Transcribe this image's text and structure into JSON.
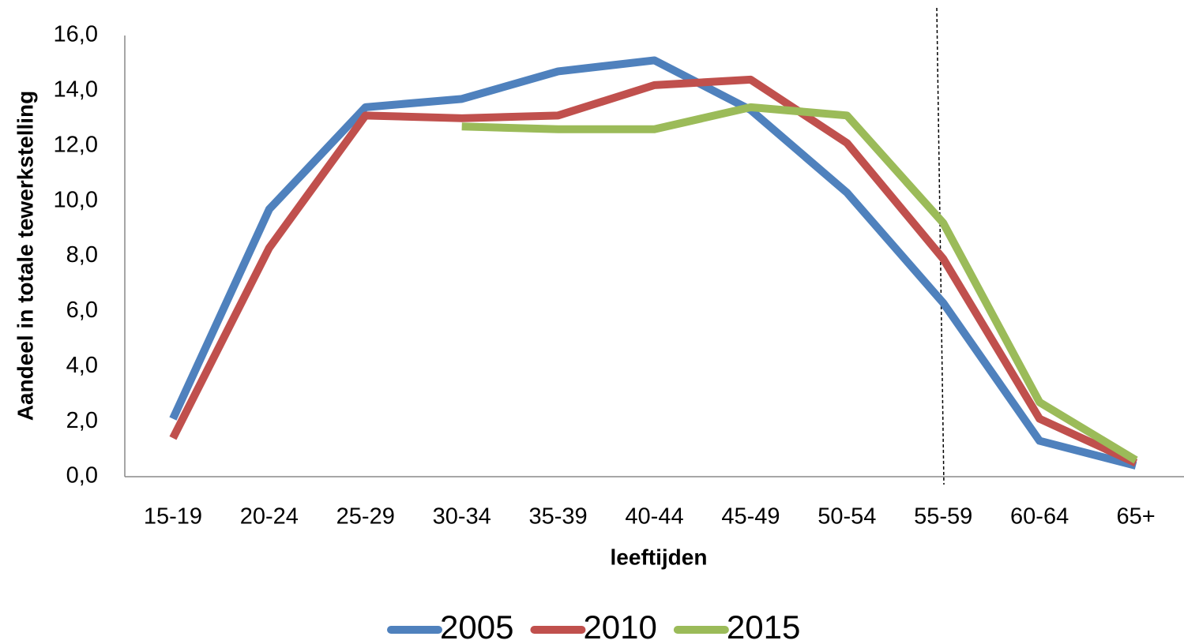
{
  "chart_data": {
    "type": "line",
    "x_label": "leeftijden",
    "y_label": "Aandeel in totale tewerkstelling",
    "categories": [
      "15-19",
      "20-24",
      "25-29",
      "30-34",
      "35-39",
      "40-44",
      "45-49",
      "50-54",
      "55-59",
      "60-64",
      "65+"
    ],
    "series": [
      {
        "name": "2005",
        "color": "#4f81bd",
        "values": [
          2.1,
          9.7,
          13.4,
          13.7,
          14.7,
          15.1,
          13.3,
          10.3,
          6.3,
          1.3,
          0.4
        ]
      },
      {
        "name": "2010",
        "color": "#c0504d",
        "values": [
          1.4,
          8.3,
          13.1,
          13.0,
          13.1,
          14.2,
          14.4,
          12.1,
          7.9,
          2.1,
          0.5
        ]
      },
      {
        "name": "2015",
        "color": "#9bbb59",
        "values": [
          null,
          null,
          null,
          12.7,
          12.6,
          12.6,
          13.4,
          13.1,
          9.2,
          2.7,
          0.6
        ]
      }
    ],
    "ylim": [
      0,
      16
    ],
    "yticks": [
      {
        "value": 0,
        "label": "0,0"
      },
      {
        "value": 2,
        "label": "2,0"
      },
      {
        "value": 4,
        "label": "4,0"
      },
      {
        "value": 6,
        "label": "6,0"
      },
      {
        "value": 8,
        "label": "8,0"
      },
      {
        "value": 10,
        "label": "10,0"
      },
      {
        "value": 12,
        "label": "12,0"
      },
      {
        "value": 14,
        "label": "14,0"
      },
      {
        "value": 16,
        "label": "16,0"
      }
    ],
    "grid": false,
    "legend": "bottom"
  }
}
